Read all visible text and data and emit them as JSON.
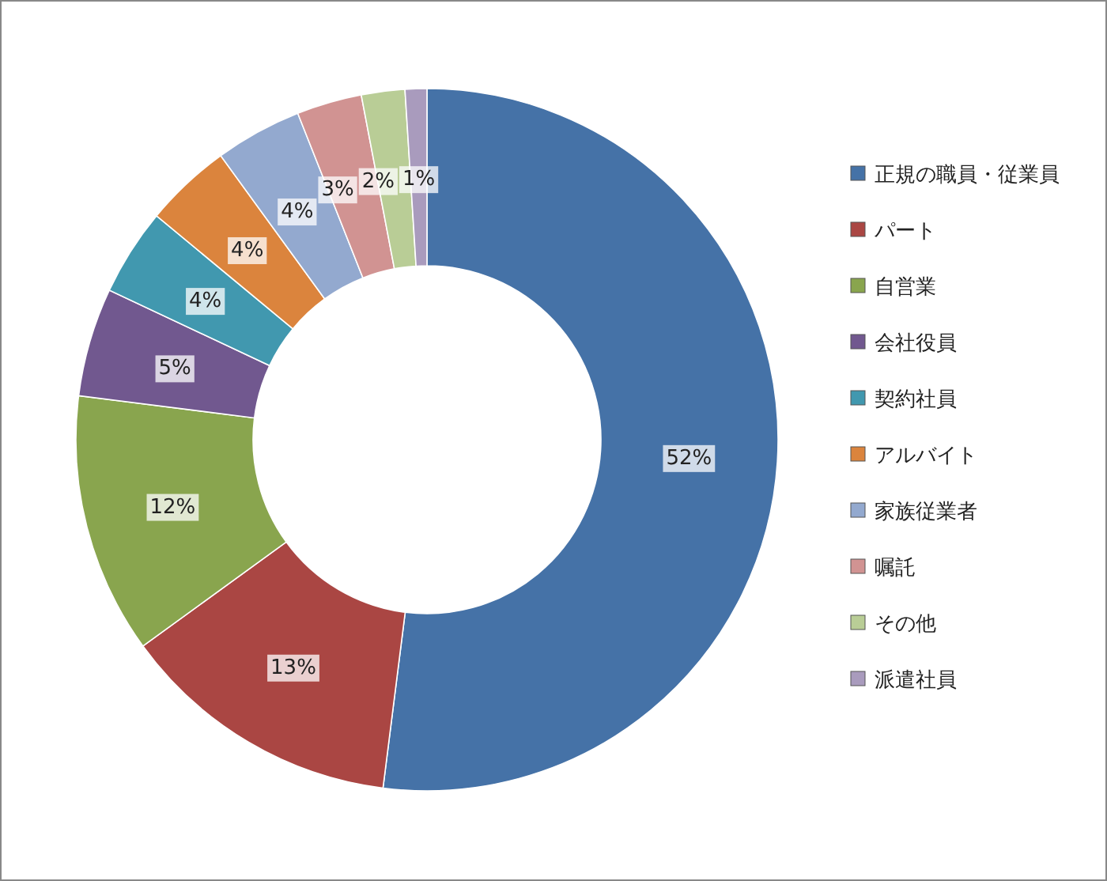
{
  "chart_data": {
    "type": "donut",
    "legend": "right",
    "categories": [
      "正規の職員・従業員",
      "パート",
      "自営業",
      "会社役員",
      "契約社員",
      "アルバイト",
      "家族従業者",
      "嘱託",
      "その他",
      "派遣社員"
    ],
    "values": [
      52,
      13,
      12,
      5,
      4,
      4,
      4,
      3,
      2,
      1
    ],
    "value_labels": [
      "52%",
      "13%",
      "12%",
      "5%",
      "4%",
      "4%",
      "4%",
      "3%",
      "2%",
      "1%"
    ],
    "colors": [
      "#4572a7",
      "#aa4643",
      "#89a54e",
      "#71588f",
      "#4198af",
      "#db843d",
      "#93a9cf",
      "#d19392",
      "#b9cd96",
      "#a99bbd"
    ]
  }
}
